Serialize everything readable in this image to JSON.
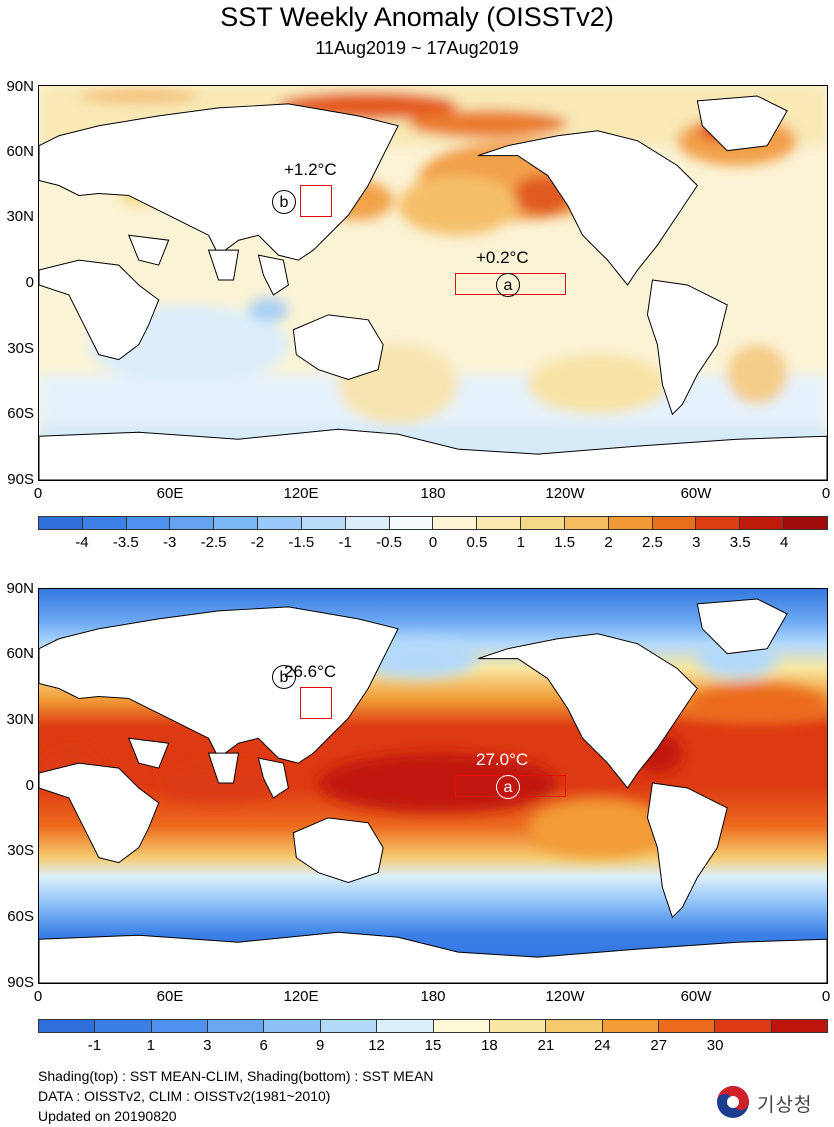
{
  "title": "SST Weekly Anomaly (OISSTv2)",
  "subtitle": "11Aug2019 ~ 17Aug2019",
  "axes": {
    "lat_labels": [
      "90N",
      "60N",
      "30N",
      "0",
      "30S",
      "60S",
      "90S"
    ],
    "lon_labels": [
      "0",
      "60E",
      "120E",
      "180",
      "120W",
      "60W",
      "0"
    ]
  },
  "top_map": {
    "colorbar_labels": [
      "-4",
      "-3.5",
      "-3",
      "-2.5",
      "-2",
      "-1.5",
      "-1",
      "-0.5",
      "0",
      "0.5",
      "1",
      "1.5",
      "2",
      "2.5",
      "3",
      "3.5",
      "4"
    ],
    "colorbar_colors": [
      "#2f6fdc",
      "#3c80e6",
      "#4f92ee",
      "#63a3f2",
      "#7bb6f5",
      "#98c9f8",
      "#b9dcfa",
      "#dcedfb",
      "#f5fbfe",
      "#fdf5d5",
      "#faeab0",
      "#f7d98a",
      "#f4be5e",
      "#f19a34",
      "#ea6f1c",
      "#dc3e12",
      "#c01a0a",
      "#a00a0a"
    ],
    "annot_a": "+0.2°C",
    "annot_b": "+1.2°C",
    "marker_a": "a",
    "marker_b": "b"
  },
  "bottom_map": {
    "colorbar_labels": [
      "-1",
      "1",
      "3",
      "6",
      "9",
      "12",
      "15",
      "18",
      "21",
      "24",
      "27",
      "30"
    ],
    "colorbar_colors": [
      "#2f6fdc",
      "#3a7ee6",
      "#4e91ee",
      "#6aa7f3",
      "#8cc0f7",
      "#b3d9fa",
      "#dcf0fb",
      "#fdf8d8",
      "#f8e7a2",
      "#f5ca6c",
      "#f29c38",
      "#ec6a1e",
      "#dd3a12",
      "#c0150a"
    ],
    "annot_a": "27.0°C",
    "annot_b": "26.6°C",
    "marker_a": "a",
    "marker_b": "b"
  },
  "footer": {
    "line1": "Shading(top) : SST MEAN-CLIM, Shading(bottom) : SST MEAN",
    "line2": "DATA : OISSTv2, CLIM : OISSTv2(1981~2010)",
    "line3": "Updated on 20190820"
  },
  "logo": {
    "text": "기상청",
    "icon": "kma-taegeuk-icon",
    "colors": {
      "red": "#d0202a",
      "blue": "#1a3d8f"
    }
  }
}
